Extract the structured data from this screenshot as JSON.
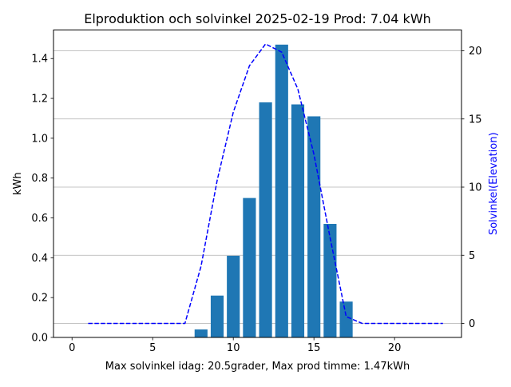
{
  "chart_data": {
    "type": "bar",
    "title": "Elproduktion och solvinkel 2025-02-19 Prod: 7.04 kWh",
    "xlabel": "Max solvinkel idag: 20.5grader, Max prod timme: 1.47kWh",
    "ylabel": "kWh",
    "y2label": "Solvinkel(Elevation)",
    "xlim": [
      -1.15,
      24.15
    ],
    "ylim": [
      0,
      1.5435
    ],
    "y2lim": [
      -1.025,
      21.525
    ],
    "xticks": [
      0,
      5,
      10,
      15,
      20
    ],
    "yticks": [
      0.0,
      0.2,
      0.4,
      0.6,
      0.8,
      1.0,
      1.2,
      1.4
    ],
    "y2ticks": [
      0,
      5,
      10,
      15,
      20
    ],
    "grid": "horizontal at right-axis ticks",
    "bar_color": "#1f77b4",
    "line_color": "#0000ff",
    "right_axis_label_color": "#0000ff",
    "series": [
      {
        "kind": "bar",
        "axis": "left",
        "x": [
          8,
          9,
          10,
          11,
          12,
          13,
          14,
          15,
          16,
          17
        ],
        "values": [
          0.04,
          0.21,
          0.41,
          0.7,
          1.18,
          1.47,
          1.17,
          1.11,
          0.57,
          0.18
        ]
      },
      {
        "kind": "line",
        "axis": "right",
        "style": "dashed",
        "x": [
          1,
          2,
          3,
          4,
          5,
          6,
          7,
          8,
          9,
          10,
          11,
          12,
          13,
          14,
          15,
          16,
          17,
          18,
          19,
          20,
          21,
          22,
          23
        ],
        "values": [
          0,
          0,
          0,
          0,
          0,
          0,
          0,
          4.2,
          10.5,
          15.5,
          18.9,
          20.5,
          19.9,
          17.2,
          12.4,
          6.3,
          0.5,
          0,
          0,
          0,
          0,
          0,
          0
        ]
      }
    ]
  }
}
